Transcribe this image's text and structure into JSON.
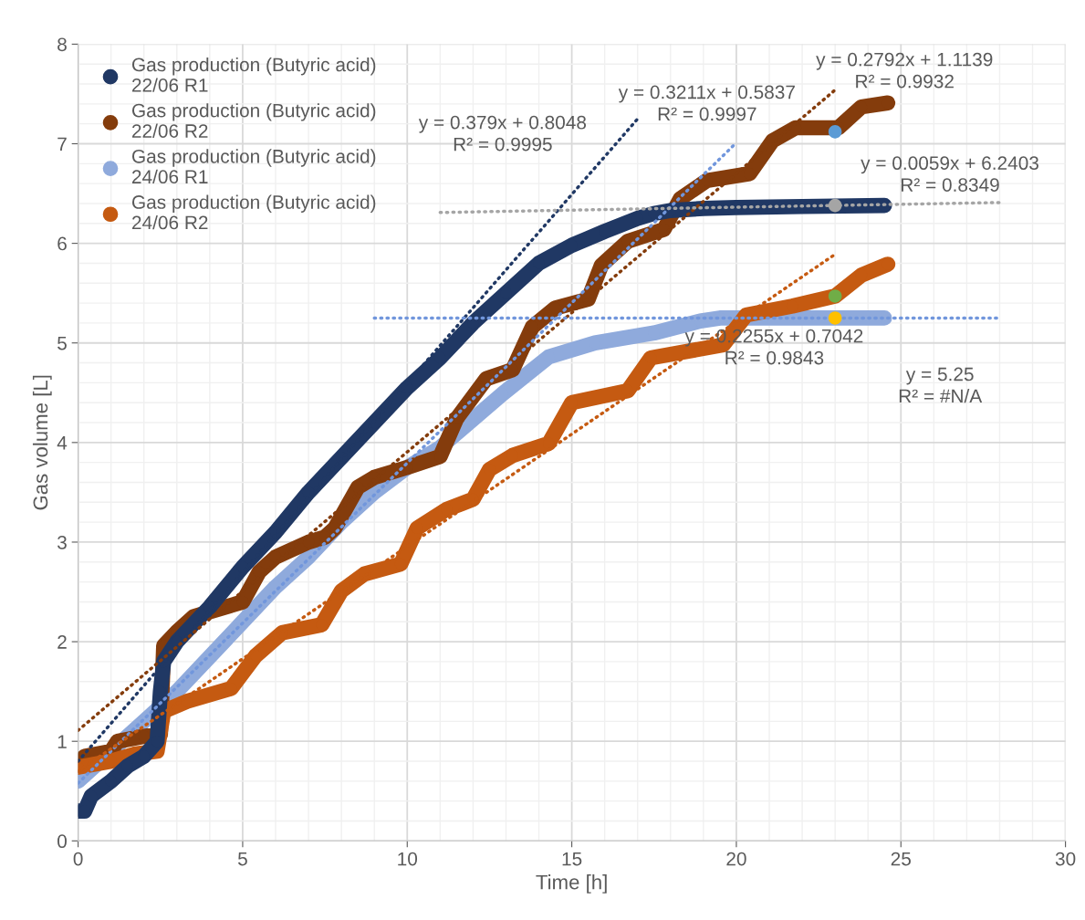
{
  "chart_data": {
    "type": "line",
    "xlabel": "Time [h]",
    "ylabel": "Gas volume [L]",
    "xlim": [
      0,
      30
    ],
    "xticks": [
      0,
      5,
      10,
      15,
      20,
      25,
      30
    ],
    "ylim": [
      0,
      8
    ],
    "yticks": [
      0,
      1,
      2,
      3,
      4,
      5,
      6,
      7,
      8
    ],
    "grid": true,
    "legend": "top left",
    "marker": "circle",
    "series": [
      {
        "name": "Gas production (Butyric acid)\n22/06 R1",
        "color": "#203864",
        "x": [
          0,
          0.2,
          0.4,
          1,
          1.5,
          2,
          2.4,
          2.5,
          2.6,
          3,
          4,
          5,
          6,
          7,
          8,
          9,
          10,
          11,
          12,
          13,
          14,
          15,
          16,
          17,
          17.5,
          18,
          19,
          20,
          22,
          24.5
        ],
        "values": [
          0.3,
          0.3,
          0.45,
          0.6,
          0.75,
          0.85,
          1.0,
          1.5,
          1.8,
          2.0,
          2.35,
          2.75,
          3.1,
          3.5,
          3.85,
          4.2,
          4.55,
          4.85,
          5.2,
          5.5,
          5.8,
          5.98,
          6.12,
          6.25,
          6.3,
          6.33,
          6.35,
          6.36,
          6.37,
          6.38
        ]
      },
      {
        "name": "Gas production (Butyric acid)\n22/06 R2",
        "color": "#843c0c",
        "x": [
          0.2,
          1,
          1.2,
          2,
          2.5,
          2.6,
          3,
          3.5,
          4,
          5,
          5.5,
          6,
          7,
          7.5,
          7.8,
          8.5,
          9,
          10,
          11,
          11.5,
          12.4,
          13.2,
          13.8,
          14.5,
          15.5,
          15.9,
          16.7,
          17.8,
          18.3,
          19.1,
          20.4,
          21.1,
          21.8,
          23.1,
          23.8,
          24.6
        ],
        "values": [
          0.85,
          0.9,
          1.0,
          1.05,
          1.07,
          1.96,
          2.1,
          2.25,
          2.3,
          2.4,
          2.7,
          2.85,
          3.0,
          3.05,
          3.14,
          3.55,
          3.65,
          3.75,
          3.86,
          4.24,
          4.64,
          4.73,
          5.16,
          5.35,
          5.44,
          5.78,
          6.02,
          6.14,
          6.45,
          6.63,
          6.7,
          7.03,
          7.16,
          7.16,
          7.37,
          7.41
        ]
      },
      {
        "name": "Gas production (Butyric acid)\n24/06 R1",
        "color": "#8faadc",
        "x": [
          0,
          0.5,
          1,
          1.5,
          2,
          3,
          4,
          5,
          6,
          7,
          8,
          9,
          10,
          11,
          12.9,
          14.3,
          15.7,
          17.5,
          18.9,
          19.5,
          24.5
        ],
        "values": [
          0.6,
          0.75,
          0.9,
          1.05,
          1.2,
          1.5,
          1.85,
          2.2,
          2.55,
          2.85,
          3.2,
          3.5,
          3.75,
          3.95,
          4.49,
          4.86,
          5.0,
          5.1,
          5.22,
          5.25,
          5.25
        ]
      },
      {
        "name": "Gas production (Butyric acid)\n24/06 R2",
        "color": "#c55a11",
        "x": [
          0,
          1,
          1.7,
          2.4,
          2.6,
          3.3,
          4.65,
          5.4,
          6.2,
          7.4,
          8.0,
          8.7,
          9.8,
          10.3,
          11.2,
          12.0,
          12.5,
          13.2,
          14.3,
          15.0,
          16.7,
          17.4,
          19.6,
          20.3,
          21.7,
          23.0,
          23.8,
          24.6
        ],
        "values": [
          0.74,
          0.8,
          0.87,
          0.9,
          1.3,
          1.4,
          1.53,
          1.86,
          2.09,
          2.17,
          2.51,
          2.68,
          2.78,
          3.14,
          3.33,
          3.43,
          3.73,
          3.87,
          3.99,
          4.4,
          4.52,
          4.85,
          4.98,
          5.28,
          5.37,
          5.47,
          5.68,
          5.79
        ]
      },
      {
        "type": "scatter",
        "color": "#5b9bd5",
        "x": [
          23
        ],
        "values": [
          7.12
        ]
      },
      {
        "type": "scatter",
        "color": "#a5a5a5",
        "x": [
          23
        ],
        "values": [
          6.38
        ]
      },
      {
        "type": "scatter",
        "color": "#70ad47",
        "x": [
          23
        ],
        "values": [
          5.47
        ]
      },
      {
        "type": "scatter",
        "color": "#ffc000",
        "x": [
          23
        ],
        "values": [
          5.25
        ]
      },
      {
        "type": "line",
        "marker": "none",
        "line_style": "dotted",
        "color": "#203864",
        "x": [
          0,
          17
        ],
        "values": [
          0.8,
          7.25
        ]
      },
      {
        "type": "line",
        "marker": "none",
        "line_style": "dotted",
        "color": "#843c0c",
        "x": [
          0,
          23
        ],
        "values": [
          1.11,
          7.54
        ]
      },
      {
        "type": "line",
        "marker": "none",
        "line_style": "dotted",
        "color": "#7196dc",
        "x": [
          0,
          20
        ],
        "values": [
          0.58,
          7.01
        ]
      },
      {
        "type": "line",
        "marker": "none",
        "line_style": "dotted",
        "color": "#c55a11",
        "x": [
          0,
          23
        ],
        "values": [
          0.7,
          5.89
        ]
      },
      {
        "type": "line",
        "marker": "none",
        "line_style": "dotted",
        "color": "#a5a5a5",
        "x": [
          11,
          28
        ],
        "values": [
          6.31,
          6.41
        ]
      },
      {
        "type": "line",
        "marker": "none",
        "line_style": "dotted",
        "color": "#7196dc",
        "x": [
          9,
          28
        ],
        "values": [
          5.25,
          5.25
        ]
      }
    ],
    "annotations": [
      "y = 0.379x + 0.8048\nR² = 0.9995",
      "y = 0.3211x + 0.5837\nR² = 0.9997",
      "y = 0.2792x + 1.1139\nR² = 0.9932",
      "y = 0.0059x + 6.2403\nR² = 0.8349",
      "y = 0.2255x + 0.7042\nR² = 0.9843",
      "y = 5.25\nR² = #N/A"
    ]
  }
}
